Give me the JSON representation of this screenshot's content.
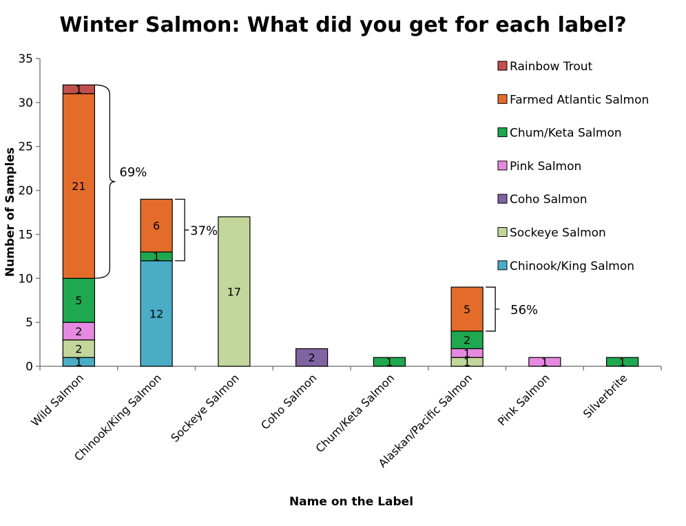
{
  "chart_data": {
    "type": "bar",
    "stacked": true,
    "title": "Winter Salmon: What did you get for each label?",
    "xlabel": "Name on the Label",
    "ylabel": "Number of Samples",
    "ylim": [
      0,
      35
    ],
    "yticks": [
      "0",
      "5",
      "10",
      "15",
      "20",
      "25",
      "30",
      "35"
    ],
    "grid": false,
    "legend_position": "right",
    "categories": [
      "Wild Salmon",
      "Chinook/King Salmon",
      "Sockeye Salmon",
      "Coho Salmon",
      "Chum/Keta Salmon",
      "Alaskan/Pacific Salmon",
      "Pink Salmon",
      "Silverbrite"
    ],
    "series": [
      {
        "name": "Chinook/King Salmon",
        "color": "#4bacc6",
        "values": [
          1,
          12,
          0,
          0,
          0,
          0,
          0,
          0
        ]
      },
      {
        "name": "Sockeye Salmon",
        "color": "#c3d69b",
        "values": [
          2,
          0,
          17,
          0,
          0,
          1,
          0,
          0
        ]
      },
      {
        "name": "Coho Salmon",
        "color": "#8064a2",
        "values": [
          0,
          0,
          0,
          2,
          0,
          0,
          0,
          0
        ]
      },
      {
        "name": "Pink Salmon",
        "color": "#e58ae0",
        "values": [
          2,
          0,
          0,
          0,
          0,
          1,
          1,
          0
        ]
      },
      {
        "name": "Chum/Keta Salmon",
        "color": "#1fa84f",
        "values": [
          5,
          1,
          0,
          0,
          1,
          2,
          0,
          1
        ]
      },
      {
        "name": "Farmed Atlantic Salmon",
        "color": "#e46c2a",
        "values": [
          21,
          6,
          0,
          0,
          0,
          5,
          0,
          0
        ]
      },
      {
        "name": "Rainbow Trout",
        "color": "#c0504d",
        "values": [
          1,
          0,
          0,
          0,
          0,
          0,
          0,
          0
        ]
      }
    ],
    "annotations": [
      {
        "label": "69%",
        "category": "Wild Salmon",
        "from": 10,
        "to": 32
      },
      {
        "label": "37%",
        "category": "Chinook/King Salmon",
        "from": 12,
        "to": 19
      },
      {
        "label": "56%",
        "category": "Alaskan/Pacific Salmon",
        "from": 4,
        "to": 9
      }
    ]
  }
}
